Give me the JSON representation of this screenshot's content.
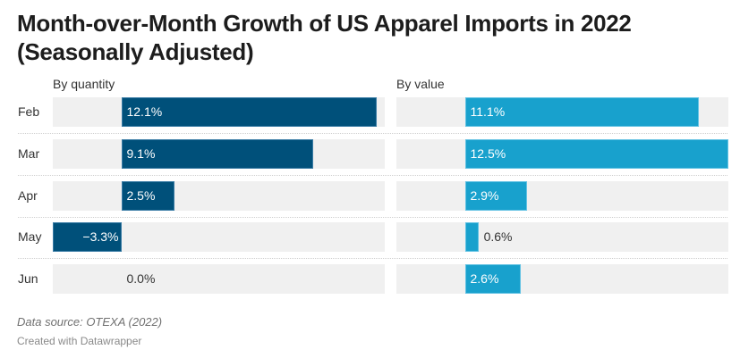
{
  "chart_data": {
    "type": "bar",
    "title": "Month-over-Month Growth of US Apparel Imports in 2022 (Seasonally Adjusted)",
    "title_lines": [
      "Month-over-Month Growth of US Apparel Imports in 2022",
      "(Seasonally Adjusted)"
    ],
    "orientation": "horizontal",
    "categories": [
      "Feb",
      "Mar",
      "Apr",
      "May",
      "Jun"
    ],
    "series": [
      {
        "name": "By quantity",
        "values": [
          12.1,
          9.1,
          2.5,
          -3.3,
          0.0
        ],
        "labels": [
          "12.1%",
          "9.1%",
          "2.5%",
          "−3.3%",
          "0.0%"
        ],
        "color": "#00507a"
      },
      {
        "name": "By value",
        "values": [
          11.1,
          12.5,
          2.9,
          0.6,
          2.6
        ],
        "labels": [
          "11.1%",
          "12.5%",
          "2.9%",
          "0.6%",
          "2.6%"
        ],
        "color": "#18a1cd"
      }
    ],
    "xlim": [
      -3.3,
      12.5
    ],
    "unit": "%",
    "grid": false,
    "legend": "none",
    "source": "Data source: OTEXA (2022)",
    "credit": "Created with Datawrapper"
  }
}
